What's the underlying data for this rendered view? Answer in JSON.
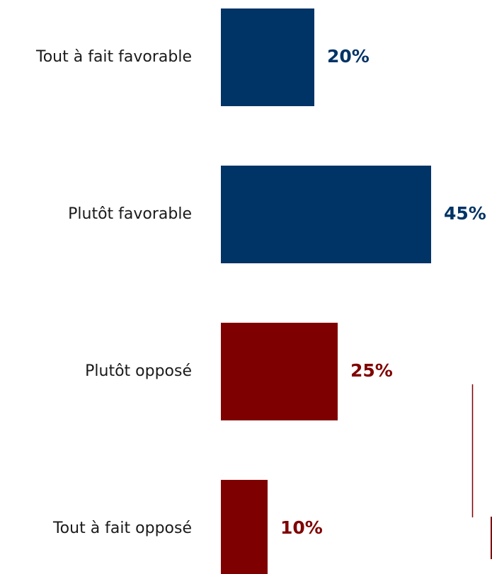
{
  "chart_data": {
    "type": "bar",
    "orientation": "horizontal",
    "categories": [
      "Tout à fait favorable",
      "Plutôt favorable",
      "Plutôt opposé",
      "Tout à fait opposé"
    ],
    "values": [
      20,
      45,
      25,
      10
    ],
    "value_labels": [
      "20%",
      "45%",
      "25%",
      "10%"
    ],
    "bar_colors": [
      "#003366",
      "#003366",
      "#7f0000",
      "#7f0000"
    ],
    "title": "",
    "xlabel": "",
    "ylabel": "",
    "grid": false,
    "legend": "none"
  },
  "colors": {
    "favorable": "#003366",
    "opposed": "#7f0000",
    "label_text": "#1a1a1a"
  }
}
